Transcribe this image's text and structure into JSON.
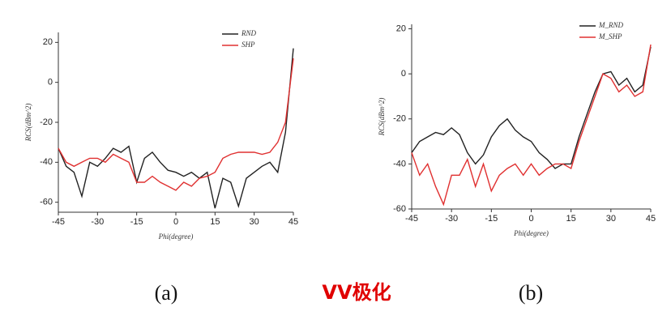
{
  "chart_data": [
    {
      "type": "line",
      "label": "(a)",
      "xlabel": "Phi(degree)",
      "ylabel": "RCS(dBm^2)",
      "x": [
        -45,
        -42,
        -39,
        -36,
        -33,
        -30,
        -27,
        -24,
        -21,
        -18,
        -15,
        -12,
        -9,
        -6,
        -3,
        0,
        3,
        6,
        9,
        12,
        15,
        18,
        21,
        24,
        27,
        30,
        33,
        36,
        39,
        42,
        45
      ],
      "xlim": [
        -45,
        45
      ],
      "xticks": [
        -45,
        -30,
        -15,
        0,
        15,
        30,
        45
      ],
      "ylim": [
        -65,
        25
      ],
      "yticks": [
        -60,
        -40,
        -20,
        0,
        20
      ],
      "legend": "upper right",
      "series": [
        {
          "name": "RND",
          "color": "#222222",
          "values": [
            -33,
            -42,
            -45,
            -57,
            -40,
            -42,
            -38,
            -33,
            -35,
            -32,
            -50,
            -38,
            -35,
            -40,
            -44,
            -45,
            -47,
            -45,
            -48,
            -45,
            -63,
            -48,
            -50,
            -62,
            -48,
            -45,
            -42,
            -40,
            -45,
            -25,
            17
          ]
        },
        {
          "name": "SHP",
          "color": "#e03030",
          "values": [
            -33,
            -40,
            -42,
            -40,
            -38,
            -38,
            -40,
            -36,
            -38,
            -40,
            -50,
            -50,
            -47,
            -50,
            -52,
            -54,
            -50,
            -52,
            -48,
            -47,
            -45,
            -38,
            -36,
            -35,
            -35,
            -35,
            -36,
            -35,
            -30,
            -20,
            12
          ]
        }
      ]
    },
    {
      "type": "line",
      "label": "(b)",
      "xlabel": "Phi(degree)",
      "ylabel": "RCS(dBm^2)",
      "x": [
        -45,
        -42,
        -39,
        -36,
        -33,
        -30,
        -27,
        -24,
        -21,
        -18,
        -15,
        -12,
        -9,
        -6,
        -3,
        0,
        3,
        6,
        9,
        12,
        15,
        18,
        21,
        24,
        27,
        30,
        33,
        36,
        39,
        42,
        45
      ],
      "xlim": [
        -45,
        45
      ],
      "xticks": [
        -45,
        -30,
        -15,
        0,
        15,
        30,
        45
      ],
      "ylim": [
        -60,
        22
      ],
      "yticks": [
        -60,
        -40,
        -20,
        0,
        20
      ],
      "legend": "upper right",
      "series": [
        {
          "name": "M_RND",
          "color": "#222222",
          "values": [
            -35,
            -30,
            -28,
            -26,
            -27,
            -24,
            -27,
            -35,
            -40,
            -36,
            -28,
            -23,
            -20,
            -25,
            -28,
            -30,
            -35,
            -38,
            -42,
            -40,
            -40,
            -28,
            -18,
            -8,
            0,
            1,
            -5,
            -2,
            -8,
            -5,
            12
          ]
        },
        {
          "name": "M_SHP",
          "color": "#e03030",
          "values": [
            -35,
            -45,
            -40,
            -50,
            -58,
            -45,
            -45,
            -38,
            -50,
            -40,
            -52,
            -45,
            -42,
            -40,
            -45,
            -40,
            -45,
            -42,
            -40,
            -40,
            -42,
            -30,
            -20,
            -10,
            0,
            -2,
            -8,
            -5,
            -10,
            -8,
            13
          ]
        }
      ]
    }
  ],
  "caption": "VV极化"
}
